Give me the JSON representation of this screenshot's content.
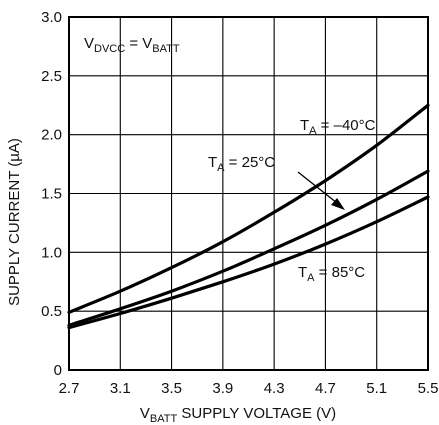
{
  "chart_data": {
    "type": "line",
    "title": "",
    "xlabel": {
      "main": "V",
      "sub": "BATT",
      "rest": " SUPPLY VOLTAGE (V)"
    },
    "ylabel": "SUPPLY CURRENT (µA)",
    "xlim": [
      2.7,
      5.5
    ],
    "ylim": [
      0,
      3.0
    ],
    "grid": true,
    "x_ticks": [
      "2.7",
      "3.1",
      "3.5",
      "3.9",
      "4.3",
      "4.7",
      "5.1",
      "5.5"
    ],
    "y_ticks": [
      "0",
      "0.5",
      "1.0",
      "1.5",
      "2.0",
      "2.5",
      "3.0"
    ],
    "annotations": {
      "condition": {
        "a": "V",
        "a_sub": "DVCC",
        "mid": " = V",
        "b_sub": "BATT"
      },
      "tm40": {
        "a": "T",
        "a_sub": "A",
        "rest": " = –40°C"
      },
      "t25": {
        "a": "T",
        "a_sub": "A",
        "rest": " = 25°C"
      },
      "t85": {
        "a": "T",
        "a_sub": "A",
        "rest": " = 85°C"
      }
    },
    "series": [
      {
        "name": "T_A = –40°C",
        "x": [
          2.7,
          3.1,
          3.5,
          3.9,
          4.3,
          4.7,
          5.1,
          5.5
        ],
        "y": [
          0.49,
          0.67,
          0.87,
          1.09,
          1.34,
          1.61,
          1.91,
          2.25
        ]
      },
      {
        "name": "T_A = 25°C",
        "x": [
          2.7,
          3.1,
          3.5,
          3.9,
          4.3,
          4.7,
          5.1,
          5.5
        ],
        "y": [
          0.38,
          0.52,
          0.67,
          0.84,
          1.03,
          1.23,
          1.45,
          1.69
        ]
      },
      {
        "name": "T_A = 85°C",
        "x": [
          2.7,
          3.1,
          3.5,
          3.9,
          4.3,
          4.7,
          5.1,
          5.5
        ],
        "y": [
          0.36,
          0.48,
          0.61,
          0.75,
          0.9,
          1.07,
          1.26,
          1.47
        ]
      }
    ]
  }
}
